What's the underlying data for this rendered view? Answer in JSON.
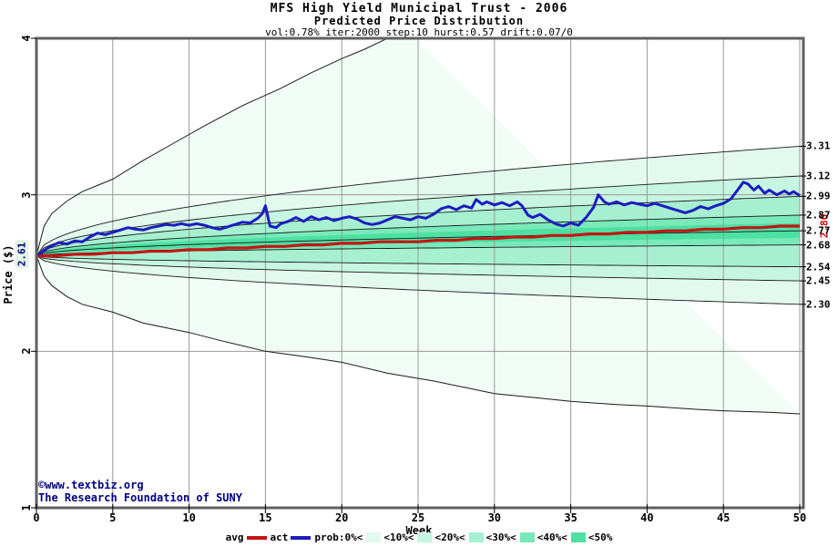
{
  "title": "MFS High Yield Municipal Trust - 2006",
  "subtitle": "Predicted Price Distribution",
  "parameters": "vol:0.78% iter:2000 step:10 hurst:0.57 drift:0.07/0",
  "copyright": {
    "line1": "©www.textbiz.org",
    "line2": "The Research Foundation of SUNY"
  },
  "axes": {
    "x_label": "Week",
    "y_label": "Price ($)",
    "x_ticks": [
      "0",
      "5",
      "10",
      "15",
      "20",
      "25",
      "30",
      "35",
      "40",
      "45",
      "50"
    ],
    "y_ticks": [
      "1",
      "2",
      "3",
      "4"
    ]
  },
  "labels": {
    "start_price": "2.61",
    "avg_end_price": "2.80"
  },
  "legend": {
    "items": [
      {
        "label": "avg",
        "marker": "line",
        "color": "#c41414",
        "marker_after": true
      },
      {
        "label": "act",
        "marker": "line",
        "color": "#1c1cbe",
        "marker_after": true
      },
      {
        "label": "prob:0%<",
        "marker": "none"
      },
      {
        "label": "<10%<",
        "marker": "box",
        "color": "#e2f9ee"
      },
      {
        "label": "<20%<",
        "marker": "box",
        "color": "#c6f5e1"
      },
      {
        "label": "<30%<",
        "marker": "box",
        "color": "#a6f0d1"
      },
      {
        "label": "<40%<",
        "marker": "box",
        "color": "#79e9ba"
      },
      {
        "label": "<50%",
        "marker": "box",
        "color": "#4ce0a2"
      }
    ]
  },
  "colors": {
    "band_prob0": "#f1fcf6",
    "band_10": "#e2f9ee",
    "band_20": "#c6f5e1",
    "band_30": "#a6f0d1",
    "band_40": "#79e9ba",
    "band_50": "#4ce0a2",
    "act_line": "#1c1cbe",
    "avg_line": "#c41414",
    "quantile_line": "#1a1a1a",
    "grid": "#999999",
    "border": "#606060",
    "avg_label": "#cc0000",
    "navy_text": "#000080"
  },
  "chart_data": {
    "type": "line",
    "title": "MFS High Yield Municipal Trust - 2006",
    "subtitle": "Predicted Price Distribution",
    "xlabel": "Week",
    "ylabel": "Price ($)",
    "xlim": [
      0,
      50
    ],
    "ylim": [
      1,
      4
    ],
    "grid": true,
    "legend_position": "bottom",
    "start_price": 2.61,
    "avg_series": {
      "name": "avg",
      "start": 2.61,
      "end": 2.8
    },
    "percentile_ends": {
      "p90": 3.31,
      "p80": 3.12,
      "p70": 2.99,
      "p60": 2.87,
      "p50": 2.77,
      "p40": 2.68,
      "p30": 2.54,
      "p20": 2.45,
      "p10": 2.3
    },
    "max_curve": [
      [
        0,
        2.61
      ],
      [
        0.5,
        2.8
      ],
      [
        1,
        2.88
      ],
      [
        2,
        2.96
      ],
      [
        3,
        3.02
      ],
      [
        4,
        3.06
      ],
      [
        5,
        3.1
      ],
      [
        7,
        3.22
      ],
      [
        9,
        3.33
      ],
      [
        11,
        3.44
      ],
      [
        13.5,
        3.57
      ],
      [
        16,
        3.68
      ],
      [
        18,
        3.78
      ],
      [
        20,
        3.87
      ],
      [
        21.5,
        3.93
      ],
      [
        23,
        4.0
      ],
      [
        24,
        4.07
      ]
    ],
    "min_curve": [
      [
        0,
        2.61
      ],
      [
        0.5,
        2.48
      ],
      [
        1,
        2.42
      ],
      [
        2,
        2.35
      ],
      [
        3,
        2.3
      ],
      [
        5,
        2.25
      ],
      [
        7,
        2.18
      ],
      [
        10,
        2.12
      ],
      [
        12,
        2.07
      ],
      [
        15,
        2.0
      ],
      [
        18,
        1.96
      ],
      [
        20,
        1.93
      ],
      [
        23,
        1.86
      ],
      [
        26,
        1.81
      ],
      [
        28,
        1.77
      ],
      [
        30,
        1.73
      ],
      [
        33,
        1.7
      ],
      [
        35,
        1.68
      ],
      [
        38,
        1.66
      ],
      [
        40,
        1.65
      ],
      [
        43,
        1.63
      ],
      [
        45,
        1.62
      ],
      [
        48,
        1.61
      ],
      [
        50,
        1.6
      ]
    ],
    "act_series": {
      "name": "act",
      "points": [
        [
          0,
          2.61
        ],
        [
          0.5,
          2.645
        ],
        [
          1,
          2.675
        ],
        [
          1.5,
          2.695
        ],
        [
          2,
          2.685
        ],
        [
          2.5,
          2.705
        ],
        [
          3,
          2.7
        ],
        [
          3.5,
          2.73
        ],
        [
          4,
          2.755
        ],
        [
          4.5,
          2.745
        ],
        [
          5,
          2.76
        ],
        [
          5.5,
          2.775
        ],
        [
          6,
          2.79
        ],
        [
          6.5,
          2.78
        ],
        [
          7,
          2.775
        ],
        [
          7.5,
          2.79
        ],
        [
          8,
          2.8
        ],
        [
          8.5,
          2.81
        ],
        [
          9,
          2.805
        ],
        [
          9.5,
          2.815
        ],
        [
          10,
          2.805
        ],
        [
          10.5,
          2.815
        ],
        [
          11,
          2.805
        ],
        [
          11.5,
          2.79
        ],
        [
          12,
          2.78
        ],
        [
          12.5,
          2.795
        ],
        [
          13,
          2.81
        ],
        [
          13.5,
          2.825
        ],
        [
          14,
          2.82
        ],
        [
          14.5,
          2.85
        ],
        [
          14.8,
          2.88
        ],
        [
          15,
          2.93
        ],
        [
          15.3,
          2.8
        ],
        [
          15.7,
          2.79
        ],
        [
          16,
          2.815
        ],
        [
          16.5,
          2.83
        ],
        [
          17,
          2.855
        ],
        [
          17.5,
          2.83
        ],
        [
          18,
          2.86
        ],
        [
          18.5,
          2.84
        ],
        [
          19,
          2.855
        ],
        [
          19.5,
          2.835
        ],
        [
          20,
          2.85
        ],
        [
          20.5,
          2.86
        ],
        [
          21,
          2.845
        ],
        [
          21.5,
          2.82
        ],
        [
          22,
          2.81
        ],
        [
          22.5,
          2.82
        ],
        [
          23,
          2.84
        ],
        [
          23.5,
          2.86
        ],
        [
          24,
          2.85
        ],
        [
          24.5,
          2.84
        ],
        [
          25,
          2.86
        ],
        [
          25.5,
          2.85
        ],
        [
          26,
          2.875
        ],
        [
          26.5,
          2.91
        ],
        [
          27,
          2.925
        ],
        [
          27.5,
          2.905
        ],
        [
          28,
          2.93
        ],
        [
          28.5,
          2.915
        ],
        [
          28.8,
          2.97
        ],
        [
          29.2,
          2.94
        ],
        [
          29.5,
          2.955
        ],
        [
          30,
          2.935
        ],
        [
          30.5,
          2.95
        ],
        [
          31,
          2.93
        ],
        [
          31.5,
          2.955
        ],
        [
          31.8,
          2.93
        ],
        [
          32.2,
          2.87
        ],
        [
          32.5,
          2.855
        ],
        [
          33,
          2.875
        ],
        [
          33.5,
          2.84
        ],
        [
          34,
          2.815
        ],
        [
          34.5,
          2.8
        ],
        [
          35,
          2.82
        ],
        [
          35.5,
          2.805
        ],
        [
          36,
          2.855
        ],
        [
          36.5,
          2.92
        ],
        [
          36.8,
          3.0
        ],
        [
          37.2,
          2.955
        ],
        [
          37.5,
          2.94
        ],
        [
          38,
          2.955
        ],
        [
          38.5,
          2.935
        ],
        [
          39,
          2.95
        ],
        [
          39.5,
          2.94
        ],
        [
          40,
          2.93
        ],
        [
          40.5,
          2.945
        ],
        [
          41,
          2.93
        ],
        [
          41.5,
          2.915
        ],
        [
          42,
          2.9
        ],
        [
          42.5,
          2.885
        ],
        [
          43,
          2.9
        ],
        [
          43.5,
          2.925
        ],
        [
          44,
          2.91
        ],
        [
          44.5,
          2.93
        ],
        [
          45,
          2.945
        ],
        [
          45.5,
          2.975
        ],
        [
          46,
          3.04
        ],
        [
          46.3,
          3.08
        ],
        [
          46.6,
          3.07
        ],
        [
          47,
          3.03
        ],
        [
          47.3,
          3.055
        ],
        [
          47.7,
          3.01
        ],
        [
          48,
          3.03
        ],
        [
          48.5,
          3.0
        ],
        [
          49,
          3.025
        ],
        [
          49.3,
          3.005
        ],
        [
          49.6,
          3.02
        ],
        [
          50,
          2.995
        ]
      ]
    }
  }
}
